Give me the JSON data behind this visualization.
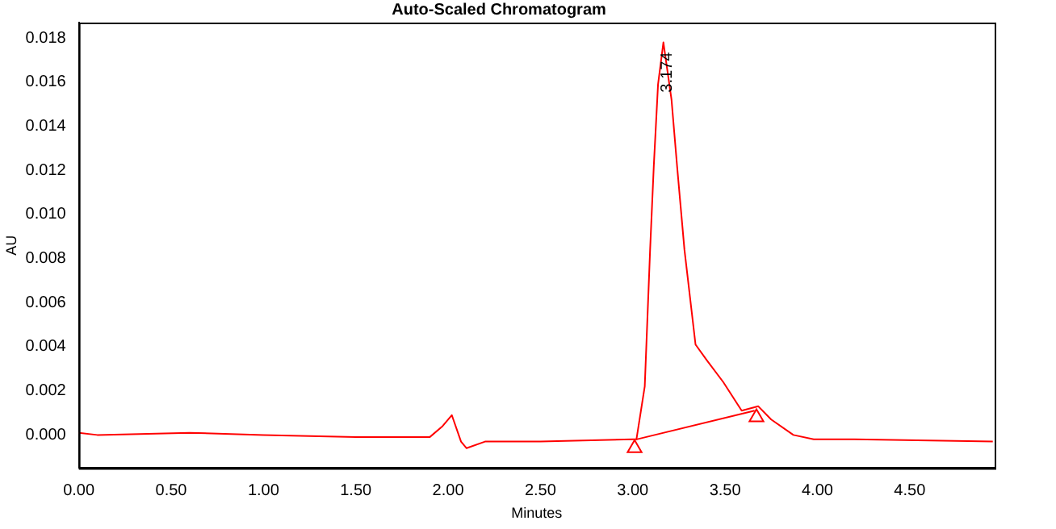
{
  "chart_data": {
    "type": "line",
    "title": "Auto-Scaled Chromatogram",
    "xlabel": "Minutes",
    "ylabel": "AU",
    "xlim": [
      0,
      4.96
    ],
    "ylim": [
      -0.0015,
      0.0187
    ],
    "xticks": [
      {
        "value": 0,
        "label": "0.00"
      },
      {
        "value": 0.5,
        "label": "0.50"
      },
      {
        "value": 1,
        "label": "1.00"
      },
      {
        "value": 1.5,
        "label": "1.50"
      },
      {
        "value": 2,
        "label": "2.00"
      },
      {
        "value": 2.5,
        "label": "2.50"
      },
      {
        "value": 3,
        "label": "3.00"
      },
      {
        "value": 3.5,
        "label": "3.50"
      },
      {
        "value": 4,
        "label": "4.00"
      },
      {
        "value": 4.5,
        "label": "4.50"
      }
    ],
    "yticks": [
      {
        "value": 0,
        "label": "0.000"
      },
      {
        "value": 0.002,
        "label": "0.002"
      },
      {
        "value": 0.004,
        "label": "0.004"
      },
      {
        "value": 0.006,
        "label": "0.006"
      },
      {
        "value": 0.008,
        "label": "0.008"
      },
      {
        "value": 0.01,
        "label": "0.010"
      },
      {
        "value": 0.012,
        "label": "0.012"
      },
      {
        "value": 0.014,
        "label": "0.014"
      },
      {
        "value": 0.016,
        "label": "0.016"
      },
      {
        "value": 0.018,
        "label": "0.018"
      }
    ],
    "grid": false,
    "legend": false,
    "marker": "none",
    "line_style": "solid",
    "series": [
      {
        "color": "#ff0000",
        "x": [
          0,
          0.1,
          0.6,
          1.0,
          1.5,
          1.9,
          1.97,
          2.02,
          2.07,
          2.1,
          2.2,
          2.5,
          3.0,
          3.02,
          3.065,
          3.094,
          3.114,
          3.137,
          3.166,
          3.21,
          3.24,
          3.28,
          3.34,
          3.4,
          3.49,
          3.59,
          3.68,
          3.75,
          3.87,
          3.98,
          4.2,
          4.95
        ],
        "values": [
          0.0001,
          0.0,
          0.0001,
          0.0,
          -0.0001,
          -0.0001,
          0.0004,
          0.0009,
          -0.0003,
          -0.0006,
          -0.0003,
          -0.0003,
          -0.0002,
          -0.0002,
          0.0022,
          0.0084,
          0.0122,
          0.0159,
          0.0178,
          0.0152,
          0.0122,
          0.0084,
          0.0041,
          0.0034,
          0.0024,
          0.0011,
          0.0013,
          0.0007,
          0.0,
          -0.0002,
          -0.0002,
          -0.0003
        ]
      },
      {
        "color": "#ff0000",
        "x": [
          3.02,
          3.66
        ],
        "values": [
          -0.0002,
          0.0011
        ]
      },
      {
        "type": "scatter",
        "marker": "triangle",
        "color": "#ff0000",
        "x": [
          3.01,
          3.67
        ],
        "values": [
          -0.0006,
          0.0008
        ]
      }
    ],
    "annotations": [
      {
        "text": "3.174",
        "x": 3.174,
        "y": 0.0178
      }
    ]
  }
}
